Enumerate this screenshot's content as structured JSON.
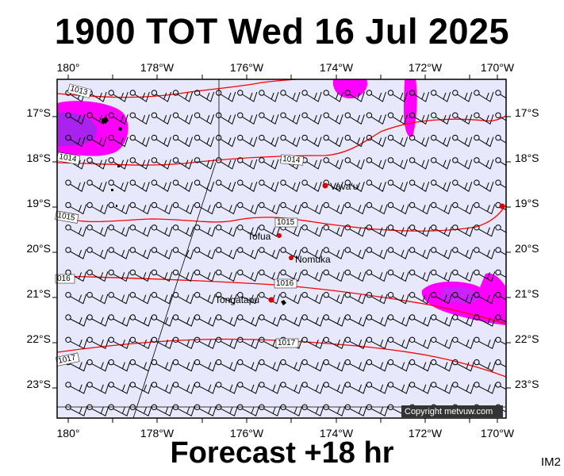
{
  "title": "1900 TOT Wed 16 Jul 2025",
  "footer": "Forecast +18 hr",
  "image_code": "IM2",
  "copyright": "Copyright metvuw.com",
  "lon_labels": [
    "180°",
    "178°W",
    "176°W",
    "174°W",
    "172°W",
    "170°W"
  ],
  "lat_labels": [
    "17°S",
    "18°S",
    "19°S",
    "20°S",
    "21°S",
    "22°S",
    "23°S"
  ],
  "places": [
    {
      "name": "Vava'u"
    },
    {
      "name": "Tofua"
    },
    {
      "name": "Nomuka"
    },
    {
      "name": "Tongatapu"
    }
  ],
  "isobars": [
    {
      "label": "1013"
    },
    {
      "label": "1014"
    },
    {
      "label": "1014"
    },
    {
      "label": "1015"
    },
    {
      "label": "1015"
    },
    {
      "label": "016"
    },
    {
      "label": "1016"
    },
    {
      "label": "1017"
    },
    {
      "label": "1017"
    }
  ],
  "colors": {
    "ocean": "#e8e8fc",
    "isobar": "#ff0000",
    "rain_light": "#ff00ff",
    "rain_heavy": "#aa22ee",
    "place_dot": "#dd0000"
  },
  "wind": {
    "rows": 15,
    "cols": 21,
    "direction": "easterly",
    "barbs_typical": 2
  }
}
